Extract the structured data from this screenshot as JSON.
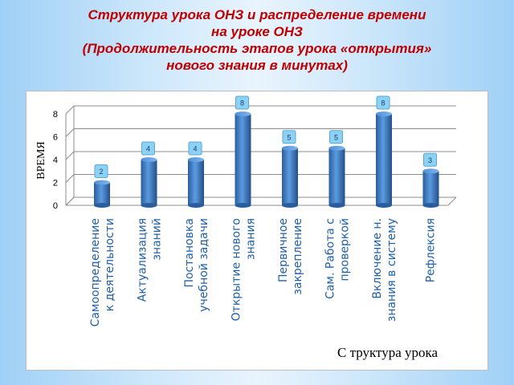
{
  "title": {
    "line1": "Структура урока  ОНЗ и распределение времени",
    "line2": "на уроке ОНЗ",
    "line3": "(Продолжительность этапов урока «открытия»",
    "line4": "нового знания в минутах)"
  },
  "caption": "С труктура   урока",
  "colors": {
    "bar": "#3f7dc4",
    "label_bg": "#8cd2f4",
    "label_text": "#1f3a73"
  },
  "chart_data": {
    "type": "bar",
    "ylabel": "ВРЕМЯ",
    "ylim": [
      0,
      8
    ],
    "yticks": [
      "0",
      "2",
      "4",
      "6",
      "8"
    ],
    "categories": [
      [
        "Самоопределение",
        "к деятельности"
      ],
      [
        "Актуализация",
        "знаний"
      ],
      [
        "Постановка",
        "учебной задачи"
      ],
      [
        "Открытие нового",
        "знания"
      ],
      [
        "Первичное",
        "закрепление"
      ],
      [
        "Сам. Работа с",
        "проверкой"
      ],
      [
        "Включение н.",
        "знания в систему"
      ],
      [
        "Рефлексия"
      ]
    ],
    "values": [
      2,
      4,
      4,
      8,
      5,
      5,
      8,
      3
    ],
    "data_labels": [
      "2",
      "4",
      "4",
      "8",
      "5",
      "5",
      "8",
      "3"
    ]
  }
}
